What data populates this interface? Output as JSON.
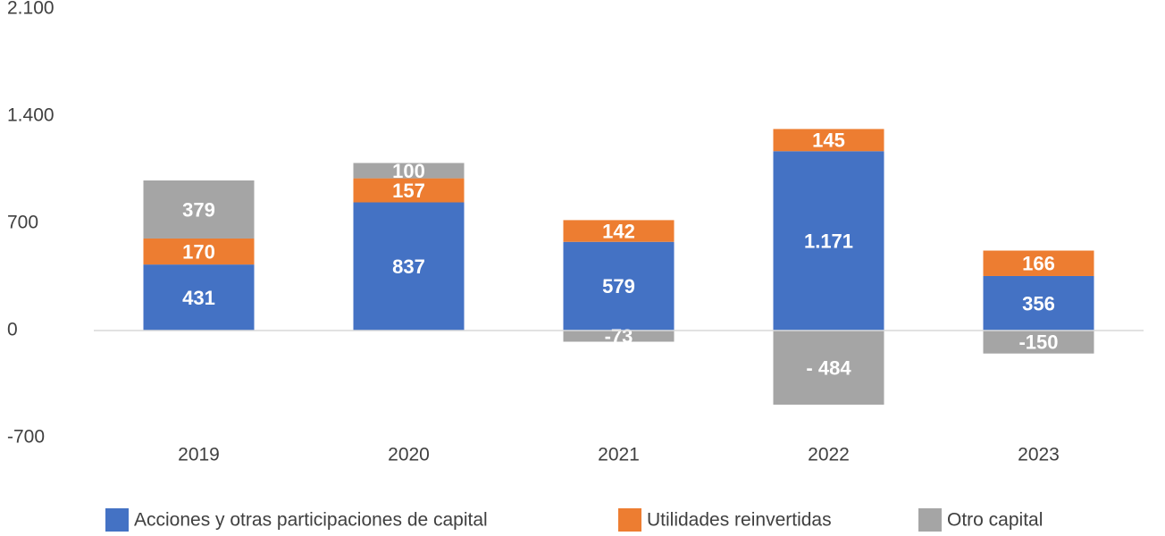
{
  "chart_data": {
    "type": "stacked_bar",
    "categories": [
      "2019",
      "2020",
      "2021",
      "2022",
      "2023"
    ],
    "series": [
      {
        "name": "Acciones y otras participaciones de capital",
        "color": "#4472c4",
        "values": [
          431,
          837,
          579,
          1171,
          356
        ],
        "value_labels": [
          "431",
          "837",
          "579",
          "1.171",
          "356"
        ]
      },
      {
        "name": "Utilidades reinvertidas",
        "color": "#ed7d31",
        "values": [
          170,
          157,
          142,
          145,
          166
        ]
      },
      {
        "name": "Otro capital",
        "color": "#a5a5a5",
        "values": [
          379,
          100,
          -73,
          -484,
          -150
        ],
        "value_labels": [
          "379",
          "100",
          "-73",
          "- 484",
          "-150"
        ]
      }
    ],
    "ylim": [
      -700,
      2100
    ],
    "yticks": [
      {
        "value": -700,
        "label": "-700"
      },
      0,
      700,
      {
        "value": 1400,
        "label": "1.400"
      },
      {
        "value": 2100,
        "label": "2.100"
      }
    ],
    "grid": false,
    "legend": "bottom"
  }
}
